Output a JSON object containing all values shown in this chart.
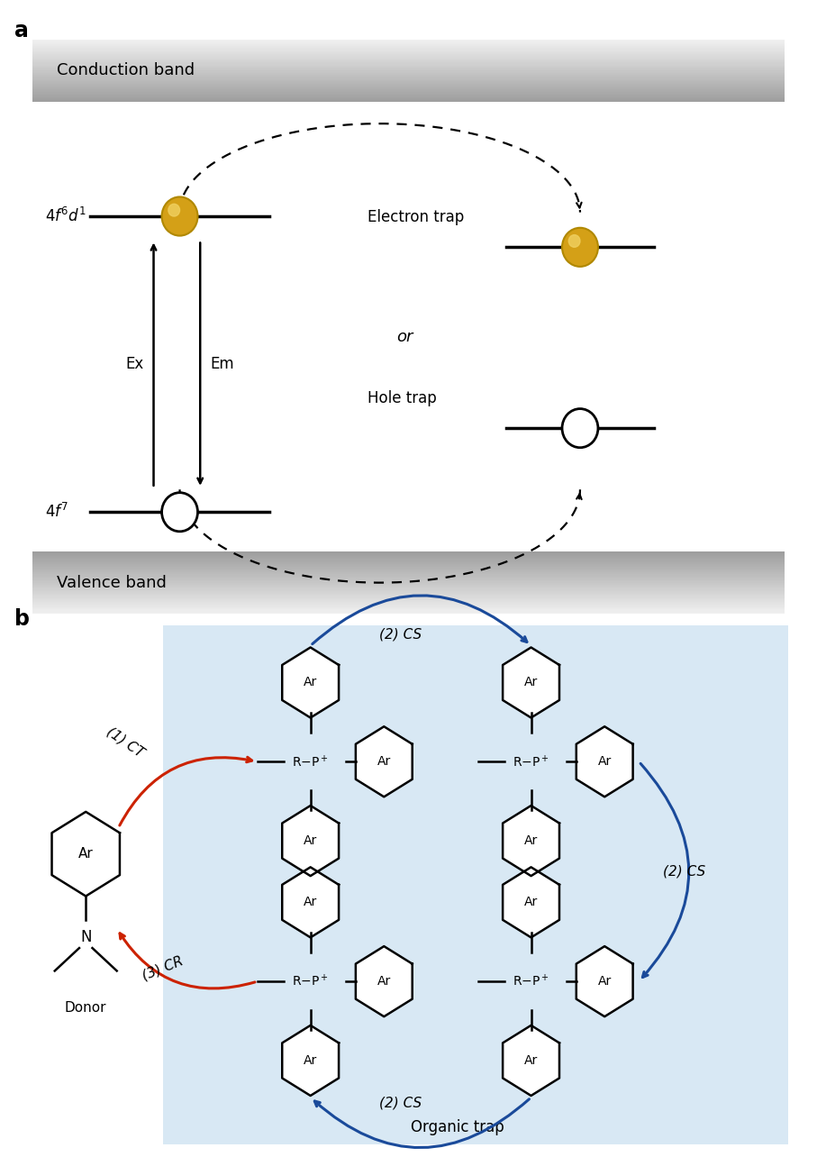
{
  "panel_a_label": "a",
  "panel_b_label": "b",
  "conduction_band_label": "Conduction band",
  "valence_band_label": "Valence band",
  "ex_label": "Ex",
  "em_label": "Em",
  "electron_trap_label": "Electron trap",
  "hole_trap_label": "Hole trap",
  "or_label": "or",
  "donor_label": "Donor",
  "organic_trap_label": "Organic trap",
  "ct_label": "(1) CT",
  "cs_label": "(2) CS",
  "cr_label": "(3) CR",
  "ar_label": "Ar",
  "gold_color": "#d4a017",
  "gold_edge": "#b08800",
  "gold_highlight": "#f0d060",
  "bg_color_b": "#d8e8f4",
  "arrow_red": "#cc2200",
  "arrow_blue": "#1a4a9a",
  "band_gray_dark": "#aaaaaa",
  "band_gray_light": "#e8e8e8"
}
